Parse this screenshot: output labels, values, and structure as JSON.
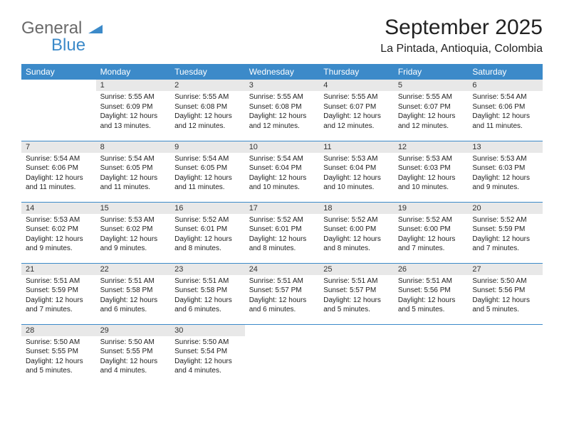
{
  "logo": {
    "word1": "General",
    "word2": "Blue"
  },
  "title": "September 2025",
  "location": "La Pintada, Antioquia, Colombia",
  "colors": {
    "header_bg": "#3c8ac9",
    "header_text": "#ffffff",
    "daynum_bg": "#e8e8e8",
    "rule": "#3c8ac9",
    "logo_gray": "#6a6a6a",
    "logo_blue": "#3c8ac9",
    "page_bg": "#ffffff",
    "body_text": "#222222"
  },
  "typography": {
    "title_fontsize": 30,
    "location_fontsize": 16,
    "weekday_fontsize": 12,
    "daynum_fontsize": 11,
    "cell_fontsize": 10
  },
  "weekdays": [
    "Sunday",
    "Monday",
    "Tuesday",
    "Wednesday",
    "Thursday",
    "Friday",
    "Saturday"
  ],
  "weeks": [
    [
      null,
      {
        "n": "1",
        "sr": "Sunrise: 5:55 AM",
        "ss": "Sunset: 6:09 PM",
        "d1": "Daylight: 12 hours",
        "d2": "and 13 minutes."
      },
      {
        "n": "2",
        "sr": "Sunrise: 5:55 AM",
        "ss": "Sunset: 6:08 PM",
        "d1": "Daylight: 12 hours",
        "d2": "and 12 minutes."
      },
      {
        "n": "3",
        "sr": "Sunrise: 5:55 AM",
        "ss": "Sunset: 6:08 PM",
        "d1": "Daylight: 12 hours",
        "d2": "and 12 minutes."
      },
      {
        "n": "4",
        "sr": "Sunrise: 5:55 AM",
        "ss": "Sunset: 6:07 PM",
        "d1": "Daylight: 12 hours",
        "d2": "and 12 minutes."
      },
      {
        "n": "5",
        "sr": "Sunrise: 5:55 AM",
        "ss": "Sunset: 6:07 PM",
        "d1": "Daylight: 12 hours",
        "d2": "and 12 minutes."
      },
      {
        "n": "6",
        "sr": "Sunrise: 5:54 AM",
        "ss": "Sunset: 6:06 PM",
        "d1": "Daylight: 12 hours",
        "d2": "and 11 minutes."
      }
    ],
    [
      {
        "n": "7",
        "sr": "Sunrise: 5:54 AM",
        "ss": "Sunset: 6:06 PM",
        "d1": "Daylight: 12 hours",
        "d2": "and 11 minutes."
      },
      {
        "n": "8",
        "sr": "Sunrise: 5:54 AM",
        "ss": "Sunset: 6:05 PM",
        "d1": "Daylight: 12 hours",
        "d2": "and 11 minutes."
      },
      {
        "n": "9",
        "sr": "Sunrise: 5:54 AM",
        "ss": "Sunset: 6:05 PM",
        "d1": "Daylight: 12 hours",
        "d2": "and 11 minutes."
      },
      {
        "n": "10",
        "sr": "Sunrise: 5:54 AM",
        "ss": "Sunset: 6:04 PM",
        "d1": "Daylight: 12 hours",
        "d2": "and 10 minutes."
      },
      {
        "n": "11",
        "sr": "Sunrise: 5:53 AM",
        "ss": "Sunset: 6:04 PM",
        "d1": "Daylight: 12 hours",
        "d2": "and 10 minutes."
      },
      {
        "n": "12",
        "sr": "Sunrise: 5:53 AM",
        "ss": "Sunset: 6:03 PM",
        "d1": "Daylight: 12 hours",
        "d2": "and 10 minutes."
      },
      {
        "n": "13",
        "sr": "Sunrise: 5:53 AM",
        "ss": "Sunset: 6:03 PM",
        "d1": "Daylight: 12 hours",
        "d2": "and 9 minutes."
      }
    ],
    [
      {
        "n": "14",
        "sr": "Sunrise: 5:53 AM",
        "ss": "Sunset: 6:02 PM",
        "d1": "Daylight: 12 hours",
        "d2": "and 9 minutes."
      },
      {
        "n": "15",
        "sr": "Sunrise: 5:53 AM",
        "ss": "Sunset: 6:02 PM",
        "d1": "Daylight: 12 hours",
        "d2": "and 9 minutes."
      },
      {
        "n": "16",
        "sr": "Sunrise: 5:52 AM",
        "ss": "Sunset: 6:01 PM",
        "d1": "Daylight: 12 hours",
        "d2": "and 8 minutes."
      },
      {
        "n": "17",
        "sr": "Sunrise: 5:52 AM",
        "ss": "Sunset: 6:01 PM",
        "d1": "Daylight: 12 hours",
        "d2": "and 8 minutes."
      },
      {
        "n": "18",
        "sr": "Sunrise: 5:52 AM",
        "ss": "Sunset: 6:00 PM",
        "d1": "Daylight: 12 hours",
        "d2": "and 8 minutes."
      },
      {
        "n": "19",
        "sr": "Sunrise: 5:52 AM",
        "ss": "Sunset: 6:00 PM",
        "d1": "Daylight: 12 hours",
        "d2": "and 7 minutes."
      },
      {
        "n": "20",
        "sr": "Sunrise: 5:52 AM",
        "ss": "Sunset: 5:59 PM",
        "d1": "Daylight: 12 hours",
        "d2": "and 7 minutes."
      }
    ],
    [
      {
        "n": "21",
        "sr": "Sunrise: 5:51 AM",
        "ss": "Sunset: 5:59 PM",
        "d1": "Daylight: 12 hours",
        "d2": "and 7 minutes."
      },
      {
        "n": "22",
        "sr": "Sunrise: 5:51 AM",
        "ss": "Sunset: 5:58 PM",
        "d1": "Daylight: 12 hours",
        "d2": "and 6 minutes."
      },
      {
        "n": "23",
        "sr": "Sunrise: 5:51 AM",
        "ss": "Sunset: 5:58 PM",
        "d1": "Daylight: 12 hours",
        "d2": "and 6 minutes."
      },
      {
        "n": "24",
        "sr": "Sunrise: 5:51 AM",
        "ss": "Sunset: 5:57 PM",
        "d1": "Daylight: 12 hours",
        "d2": "and 6 minutes."
      },
      {
        "n": "25",
        "sr": "Sunrise: 5:51 AM",
        "ss": "Sunset: 5:57 PM",
        "d1": "Daylight: 12 hours",
        "d2": "and 5 minutes."
      },
      {
        "n": "26",
        "sr": "Sunrise: 5:51 AM",
        "ss": "Sunset: 5:56 PM",
        "d1": "Daylight: 12 hours",
        "d2": "and 5 minutes."
      },
      {
        "n": "27",
        "sr": "Sunrise: 5:50 AM",
        "ss": "Sunset: 5:56 PM",
        "d1": "Daylight: 12 hours",
        "d2": "and 5 minutes."
      }
    ],
    [
      {
        "n": "28",
        "sr": "Sunrise: 5:50 AM",
        "ss": "Sunset: 5:55 PM",
        "d1": "Daylight: 12 hours",
        "d2": "and 5 minutes."
      },
      {
        "n": "29",
        "sr": "Sunrise: 5:50 AM",
        "ss": "Sunset: 5:55 PM",
        "d1": "Daylight: 12 hours",
        "d2": "and 4 minutes."
      },
      {
        "n": "30",
        "sr": "Sunrise: 5:50 AM",
        "ss": "Sunset: 5:54 PM",
        "d1": "Daylight: 12 hours",
        "d2": "and 4 minutes."
      },
      null,
      null,
      null,
      null
    ]
  ]
}
